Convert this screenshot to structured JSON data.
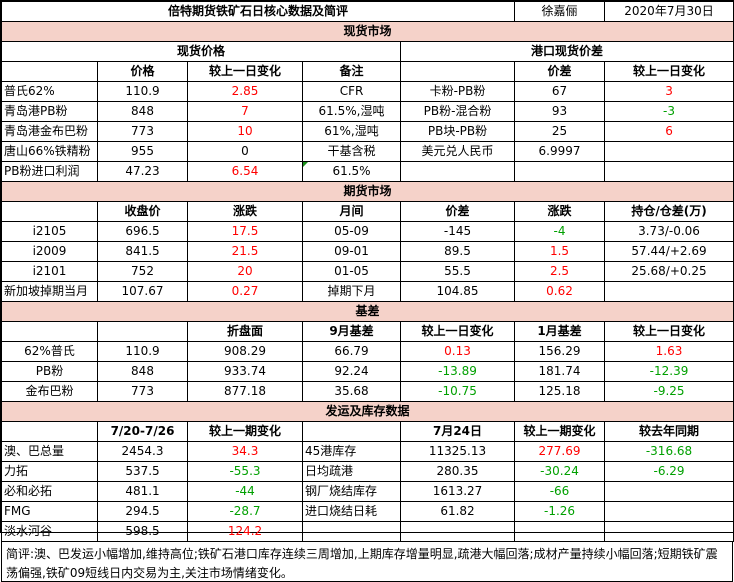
{
  "title_bar": {
    "title": "倍特期货铁矿石日核心数据及简评",
    "author": "徐嘉俪",
    "date": "2020年7月30日"
  },
  "spot": {
    "section": "现货市场",
    "left_header": "现货价格",
    "right_header": "港口现货价差",
    "col": {
      "price": "价格",
      "change": "较上一日变化",
      "note": "备注",
      "spread": "价差",
      "spread_change": "较上一日变化"
    },
    "rows": [
      {
        "name": "普氏62%",
        "price": "110.9",
        "change": "2.85",
        "note": "CFR",
        "spread_name": "卡粉-PB粉",
        "spread": "67",
        "spread_change": "3"
      },
      {
        "name": "青岛港PB粉",
        "price": "848",
        "change": "7",
        "note": "61.5%,湿吨",
        "spread_name": "PB粉-混合粉",
        "spread": "93",
        "spread_change": "-3"
      },
      {
        "name": "青岛港金布巴粉",
        "price": "773",
        "change": "10",
        "note": "61%,湿吨",
        "spread_name": "PB块-PB粉",
        "spread": "25",
        "spread_change": "6"
      },
      {
        "name": "唐山66%铁精粉",
        "price": "955",
        "change": "0",
        "note": "干基含税",
        "spread_name": "美元兑人民币",
        "spread": "6.9997",
        "spread_change": ""
      },
      {
        "name": "PB粉进口利润",
        "price": "47.23",
        "change": "6.54",
        "note": "61.5%",
        "spread_name": "",
        "spread": "",
        "spread_change": ""
      }
    ]
  },
  "futures": {
    "section": "期货市场",
    "col": {
      "close": "收盘价",
      "chg": "涨跌",
      "month": "月间",
      "spread": "价差",
      "spread_chg": "涨跌",
      "oi": "持仓/仓差(万)"
    },
    "rows": [
      {
        "name": "i2105",
        "close": "696.5",
        "chg": "17.5",
        "month": "05-09",
        "spread": "-145",
        "spread_chg": "-4",
        "oi": "3.73/-0.06"
      },
      {
        "name": "i2009",
        "close": "841.5",
        "chg": "21.5",
        "month": "09-01",
        "spread": "89.5",
        "spread_chg": "1.5",
        "oi": "57.44/+2.69"
      },
      {
        "name": "i2101",
        "close": "752",
        "chg": "20",
        "month": "01-05",
        "spread": "55.5",
        "spread_chg": "2.5",
        "oi": "25.68/+0.25"
      },
      {
        "name": "新加坡掉期当月",
        "close": "107.67",
        "chg": "0.27",
        "month": "掉期下月",
        "spread": "104.85",
        "spread_chg": "0.62",
        "oi": ""
      }
    ]
  },
  "basis": {
    "section": "基差",
    "col": {
      "disk": "折盘面",
      "b9": "9月基差",
      "b9_chg": "较上一日变化",
      "b1": "1月基差",
      "b1_chg": "较上一日变化"
    },
    "rows": [
      {
        "name": "62%普氏",
        "price": "110.9",
        "disk": "908.29",
        "b9": "66.79",
        "b9_chg": "0.13",
        "b1": "156.29",
        "b1_chg": "1.63"
      },
      {
        "name": "PB粉",
        "price": "848",
        "disk": "933.74",
        "b9": "92.24",
        "b9_chg": "-13.89",
        "b1": "181.74",
        "b1_chg": "-12.39"
      },
      {
        "name": "金布巴粉",
        "price": "773",
        "disk": "877.18",
        "b9": "35.68",
        "b9_chg": "-10.75",
        "b1": "125.18",
        "b1_chg": "-9.25"
      }
    ]
  },
  "shipping": {
    "section": "发运及库存数据",
    "col": {
      "period": "7/20-7/26",
      "chg": "较上一期变化",
      "date": "7月24日",
      "chg2": "较上一期变化",
      "yoy": "较去年同期"
    },
    "rows": [
      {
        "name": "澳、巴总量",
        "val": "2454.3",
        "chg": "34.3",
        "item": "45港库存",
        "val2": "11325.13",
        "chg2": "277.69",
        "yoy": "-316.68"
      },
      {
        "name": "力拓",
        "val": "537.5",
        "chg": "-55.3",
        "item": "日均疏港",
        "val2": "280.35",
        "chg2": "-30.24",
        "yoy": "-6.29"
      },
      {
        "name": "必和必拓",
        "val": "481.1",
        "chg": "-44",
        "item": "钢厂烧结库存",
        "val2": "1613.27",
        "chg2": "-66",
        "yoy": ""
      },
      {
        "name": "FMG",
        "val": "294.5",
        "chg": "-28.7",
        "item": "进口烧结日耗",
        "val2": "61.82",
        "chg2": "-1.26",
        "yoy": ""
      },
      {
        "name": "淡水河谷",
        "val": "598.5",
        "chg": "124.2",
        "item": "",
        "val2": "",
        "chg2": "",
        "yoy": ""
      }
    ]
  },
  "comment": "简评:澳、巴发运小幅增加,维持高位;铁矿石港口库存连续三周增加,上期库存增量明显,疏港大幅回落;成材产量持续小幅回落;短期铁矿震荡偏强,铁矿09短线日内交易为主,关注市场情绪变化。",
  "colors": {
    "section_bg": "#f5d2c9",
    "up": "#ff0000",
    "down": "#00a000",
    "marker": "#1a8f1a"
  }
}
